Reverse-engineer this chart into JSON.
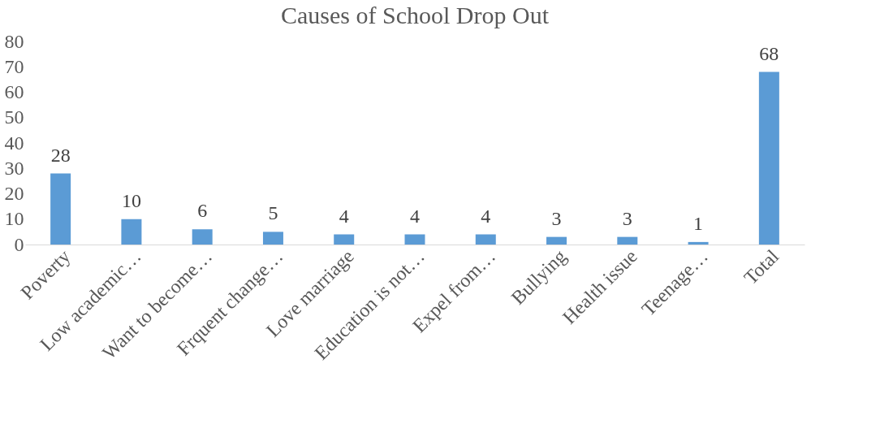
{
  "chart_data": {
    "type": "bar",
    "title": "Causes of School Drop Out",
    "categories": [
      "Poverty",
      "Low academic…",
      "Want to become…",
      "Frquent change…",
      "Love marriage",
      "Education is not…",
      "Expel from…",
      "Bullying",
      "Health issue",
      "Teenage…",
      "Total"
    ],
    "values": [
      28,
      10,
      6,
      5,
      4,
      4,
      4,
      3,
      3,
      1,
      68
    ],
    "color": "#5b9bd5",
    "ylim": [
      0,
      80
    ],
    "yticks": [
      0,
      10,
      20,
      30,
      40,
      50,
      60,
      70,
      80
    ],
    "grid": false,
    "data_labels": true
  }
}
